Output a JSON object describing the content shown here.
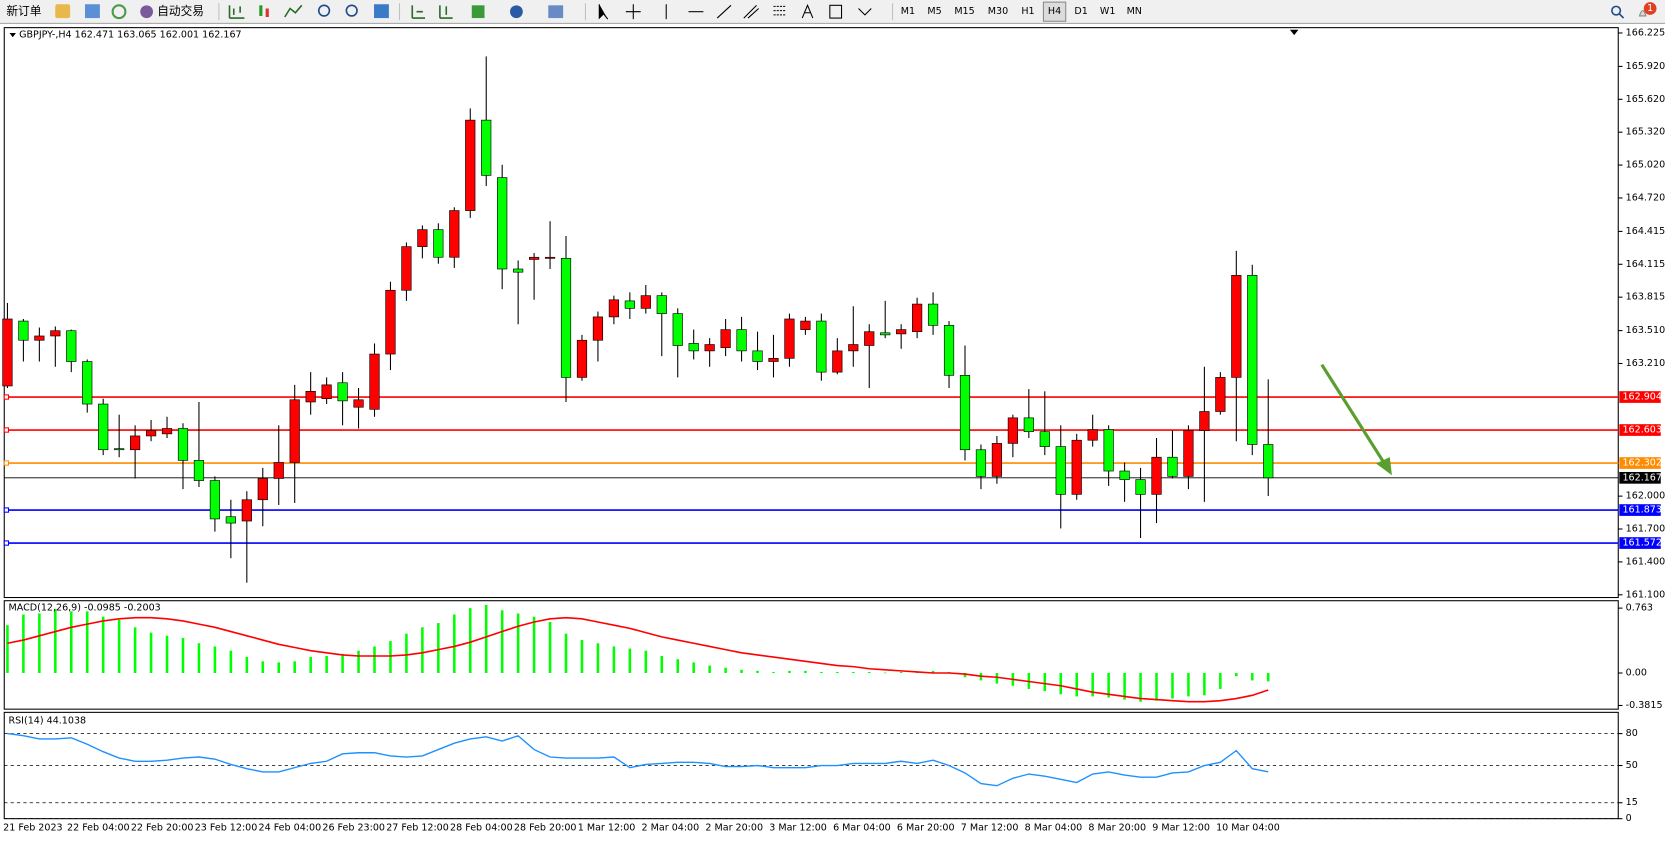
{
  "toolbar": {
    "buttons": [
      "新订单",
      "自动交易"
    ],
    "timeframes": [
      "M1",
      "M5",
      "M15",
      "M30",
      "H1",
      "H4",
      "D1",
      "W1",
      "MN"
    ],
    "active_timeframe": "H4",
    "notifications": 1
  },
  "chart_data": [
    {
      "type": "candlestick",
      "title": "GBPJPY-,H4 162.471 163.065 162.001 162.167",
      "categories": [
        "21 Feb 2023",
        null,
        null,
        null,
        "22 Feb 04:00",
        null,
        null,
        null,
        "22 Feb 20:00",
        null,
        null,
        null,
        "23 Feb 12:00",
        null,
        null,
        null,
        "24 Feb 04:00",
        null,
        null,
        null,
        "26 Feb 23:00",
        null,
        null,
        null,
        "27 Feb 12:00",
        null,
        null,
        null,
        "28 Feb 04:00",
        null,
        null,
        null,
        "28 Feb 20:00",
        null,
        null,
        null,
        "1 Mar 12:00",
        null,
        null,
        null,
        "2 Mar 04:00",
        null,
        null,
        null,
        "2 Mar 20:00",
        null,
        null,
        null,
        "3 Mar 12:00",
        null,
        null,
        null,
        "6 Mar 04:00",
        null,
        null,
        null,
        "6 Mar 20:00",
        null,
        null,
        null,
        "7 Mar 12:00",
        null,
        null,
        null,
        "8 Mar 04:00",
        null,
        null,
        null,
        "8 Mar 20:00",
        null,
        null,
        null,
        "9 Mar 12:00",
        null,
        null,
        null,
        "10 Mar 04:00",
        null,
        null,
        null
      ],
      "open": [
        163.005,
        163.597,
        163.422,
        163.461,
        163.509,
        163.228,
        162.84,
        162.433,
        162.423,
        162.549,
        162.568,
        162.617,
        162.326,
        162.142,
        161.812,
        161.773,
        161.967,
        162.161,
        162.307,
        162.859,
        162.889,
        163.034,
        162.811,
        162.792,
        163.296,
        163.878,
        164.276,
        164.431,
        164.179,
        164.605,
        165.43,
        164.906,
        164.072,
        164.159,
        164.169,
        164.169,
        163.083,
        163.422,
        163.635,
        163.781,
        163.713,
        163.829,
        163.665,
        163.393,
        163.325,
        163.354,
        163.519,
        163.325,
        163.228,
        163.257,
        163.519,
        163.597,
        163.131,
        163.325,
        163.374,
        163.49,
        163.48,
        163.5,
        163.752,
        163.558,
        163.102,
        162.423,
        162.18,
        162.481,
        162.714,
        162.588,
        162.452,
        162.016,
        162.51,
        162.607,
        162.229,
        162.151,
        162.016,
        162.355,
        162.18,
        162.598,
        162.772,
        163.083,
        164.014,
        162.471
      ],
      "high": [
        163.762,
        163.616,
        163.538,
        163.548,
        163.519,
        163.247,
        162.889,
        162.743,
        162.646,
        162.695,
        162.724,
        162.665,
        162.859,
        162.18,
        161.967,
        162.045,
        162.258,
        162.646,
        163.015,
        163.131,
        163.083,
        163.131,
        162.986,
        163.393,
        163.956,
        164.314,
        164.47,
        164.489,
        164.635,
        165.537,
        166.012,
        165.023,
        164.15,
        164.217,
        164.508,
        164.373,
        163.471,
        163.684,
        163.829,
        163.859,
        163.926,
        163.859,
        163.713,
        163.519,
        163.441,
        163.616,
        163.635,
        163.5,
        163.471,
        163.665,
        163.635,
        163.665,
        163.441,
        163.732,
        163.568,
        163.781,
        163.568,
        163.81,
        163.859,
        163.597,
        163.374,
        162.471,
        162.549,
        162.743,
        162.976,
        162.956,
        162.646,
        162.568,
        162.743,
        162.646,
        162.307,
        162.258,
        162.53,
        162.598,
        162.646,
        163.18,
        163.131,
        164.237,
        164.111,
        163.065
      ],
      "low": [
        162.986,
        163.228,
        163.228,
        163.18,
        163.131,
        162.762,
        162.374,
        162.355,
        162.161,
        162.501,
        162.53,
        162.064,
        162.083,
        161.676,
        161.434,
        161.21,
        161.725,
        161.919,
        161.938,
        162.743,
        162.84,
        162.646,
        162.617,
        162.724,
        163.15,
        163.781,
        164.169,
        164.12,
        164.082,
        164.538,
        164.829,
        163.888,
        163.568,
        163.791,
        164.072,
        162.859,
        163.053,
        163.228,
        163.568,
        163.616,
        163.665,
        163.277,
        163.083,
        163.247,
        163.18,
        163.277,
        163.228,
        163.15,
        163.083,
        163.18,
        163.471,
        163.053,
        163.112,
        163.18,
        162.986,
        163.441,
        163.344,
        163.441,
        163.471,
        162.986,
        162.326,
        162.064,
        162.113,
        162.355,
        162.53,
        162.374,
        161.705,
        161.967,
        162.452,
        162.093,
        161.948,
        161.618,
        161.754,
        162.161,
        162.064,
        161.948,
        162.743,
        162.501,
        162.374,
        162.001
      ],
      "close": [
        163.616,
        163.422,
        163.461,
        163.509,
        163.228,
        162.84,
        162.423,
        162.423,
        162.549,
        162.598,
        162.617,
        162.326,
        162.142,
        161.792,
        161.754,
        161.967,
        162.161,
        162.307,
        162.879,
        162.956,
        163.015,
        162.869,
        162.879,
        163.296,
        163.878,
        164.276,
        164.431,
        164.179,
        164.605,
        165.43,
        164.926,
        164.072,
        164.043,
        164.179,
        164.179,
        163.083,
        163.422,
        163.635,
        163.791,
        163.713,
        163.829,
        163.665,
        163.374,
        163.325,
        163.383,
        163.519,
        163.325,
        163.228,
        163.257,
        163.616,
        163.597,
        163.131,
        163.325,
        163.383,
        163.5,
        163.471,
        163.519,
        163.752,
        163.558,
        163.102,
        162.423,
        162.18,
        162.481,
        162.714,
        162.588,
        162.452,
        162.016,
        162.51,
        162.607,
        162.229,
        162.151,
        162.016,
        162.355,
        162.18,
        162.598,
        162.772,
        163.083,
        164.014,
        162.471,
        162.167
      ],
      "up_color": "#ff0000",
      "down_color": "#00ff00",
      "ylim": [
        161.075,
        166.264
      ],
      "yticks": [
        166.225,
        {
          "value": 165.92,
          "label": "165.920"
        },
        {
          "value": 165.62,
          "label": "165.620"
        },
        {
          "value": 165.32,
          "label": "165.320"
        },
        {
          "value": 165.02,
          "label": "165.020"
        },
        {
          "value": 164.72,
          "label": "164.720"
        },
        164.415,
        164.115,
        163.815,
        {
          "value": 163.51,
          "label": "163.510"
        },
        {
          "value": 163.21,
          "label": "163.210"
        },
        {
          "value": 162,
          "label": "162.000"
        },
        {
          "value": 161.7,
          "label": "161.700"
        },
        {
          "value": 161.4,
          "label": "161.400"
        },
        {
          "value": 161.1,
          "label": "161.100"
        }
      ],
      "levels": [
        {
          "value": 162.904,
          "color": "#ff0000"
        },
        {
          "value": 162.603,
          "color": "#ff0000"
        },
        {
          "value": 162.302,
          "color": "#ff8c00"
        },
        {
          "value": 162.167,
          "color": "#000000"
        },
        {
          "value": 161.873,
          "color": "#0000ff"
        },
        {
          "value": 161.572,
          "color": "#0000ff"
        }
      ]
    },
    {
      "type": "macd",
      "title": "MACD(12,26,9) -0.0985 -0.2003",
      "histogram": {
        "color": "#00ff00",
        "values": [
          0.5625,
          0.6875,
          0.7,
          0.75,
          0.725,
          0.725,
          0.6625,
          0.625,
          0.5375,
          0.475,
          0.4375,
          0.4125,
          0.35,
          0.3125,
          0.2625,
          0.1875,
          0.1375,
          0.125,
          0.1375,
          0.1875,
          0.2,
          0.225,
          0.2625,
          0.3125,
          0.375,
          0.4625,
          0.5375,
          0.5875,
          0.6875,
          0.7625,
          0.8,
          0.7375,
          0.7,
          0.6625,
          0.6,
          0.4625,
          0.3875,
          0.35,
          0.3125,
          0.2875,
          0.2625,
          0.2,
          0.1625,
          0.125,
          0.0875,
          0.0625,
          0.0375,
          0.025,
          0.0125,
          0.025,
          0.025,
          0.0125,
          0.0125,
          0.0125,
          0.0125,
          0.005,
          0.0125,
          0.0125,
          0.025,
          0.0125,
          -0.05,
          -0.0875,
          -0.125,
          -0.15,
          -0.1875,
          -0.2125,
          -0.25,
          -0.275,
          -0.275,
          -0.2875,
          -0.3125,
          -0.3375,
          -0.325,
          -0.3,
          -0.275,
          -0.2625,
          -0.1875,
          -0.0375,
          -0.0875,
          -0.0985
        ]
      },
      "signal": {
        "color": "#ff0000",
        "values": [
          0.35,
          0.3875,
          0.4375,
          0.4875,
          0.5375,
          0.575,
          0.6125,
          0.6375,
          0.65,
          0.65,
          0.6375,
          0.6125,
          0.575,
          0.5375,
          0.4875,
          0.4375,
          0.3875,
          0.3375,
          0.3,
          0.2625,
          0.2375,
          0.2125,
          0.2,
          0.2,
          0.2,
          0.2125,
          0.2375,
          0.275,
          0.3125,
          0.3625,
          0.425,
          0.4875,
          0.55,
          0.6,
          0.6375,
          0.65,
          0.6375,
          0.6,
          0.5625,
          0.525,
          0.475,
          0.425,
          0.3875,
          0.35,
          0.3125,
          0.275,
          0.2375,
          0.2125,
          0.1875,
          0.1625,
          0.1375,
          0.1125,
          0.0875,
          0.075,
          0.05,
          0.0375,
          0.025,
          0.0125,
          0,
          0,
          -0.0125,
          -0.0375,
          -0.05,
          -0.075,
          -0.1,
          -0.125,
          -0.15,
          -0.1875,
          -0.225,
          -0.25,
          -0.275,
          -0.3,
          -0.3125,
          -0.325,
          -0.3375,
          -0.3375,
          -0.325,
          -0.3,
          -0.2625,
          -0.2003
        ]
      },
      "ylim": [
        -0.425,
        0.85
      ],
      "yticks": [
        0.763,
        {
          "value": 0,
          "label": "0.00"
        },
        -0.3815
      ]
    },
    {
      "type": "line",
      "title": "RSI(14) 44.1038",
      "color": "#1e90ff",
      "values": [
        80,
        78,
        75,
        75,
        76,
        70,
        63,
        57,
        54,
        54,
        55,
        57,
        58,
        56,
        51,
        47,
        44,
        44,
        48,
        52,
        54,
        61,
        62,
        62,
        59,
        58,
        59,
        65,
        71,
        75,
        77,
        73,
        78,
        65,
        58,
        57,
        57,
        57,
        58,
        48,
        51,
        52,
        53,
        53,
        52,
        49,
        49,
        50,
        48,
        48,
        48,
        50,
        50,
        52,
        52,
        52,
        54,
        52,
        55,
        50,
        43,
        33,
        31,
        38,
        42,
        40,
        37,
        34,
        42,
        44,
        41,
        39,
        39,
        43,
        44,
        50,
        53,
        64,
        47,
        44.1038
      ],
      "ylim": [
        0,
        100
      ],
      "yticks": [
        80,
        50,
        15,
        0
      ],
      "grid": "dashed"
    }
  ]
}
